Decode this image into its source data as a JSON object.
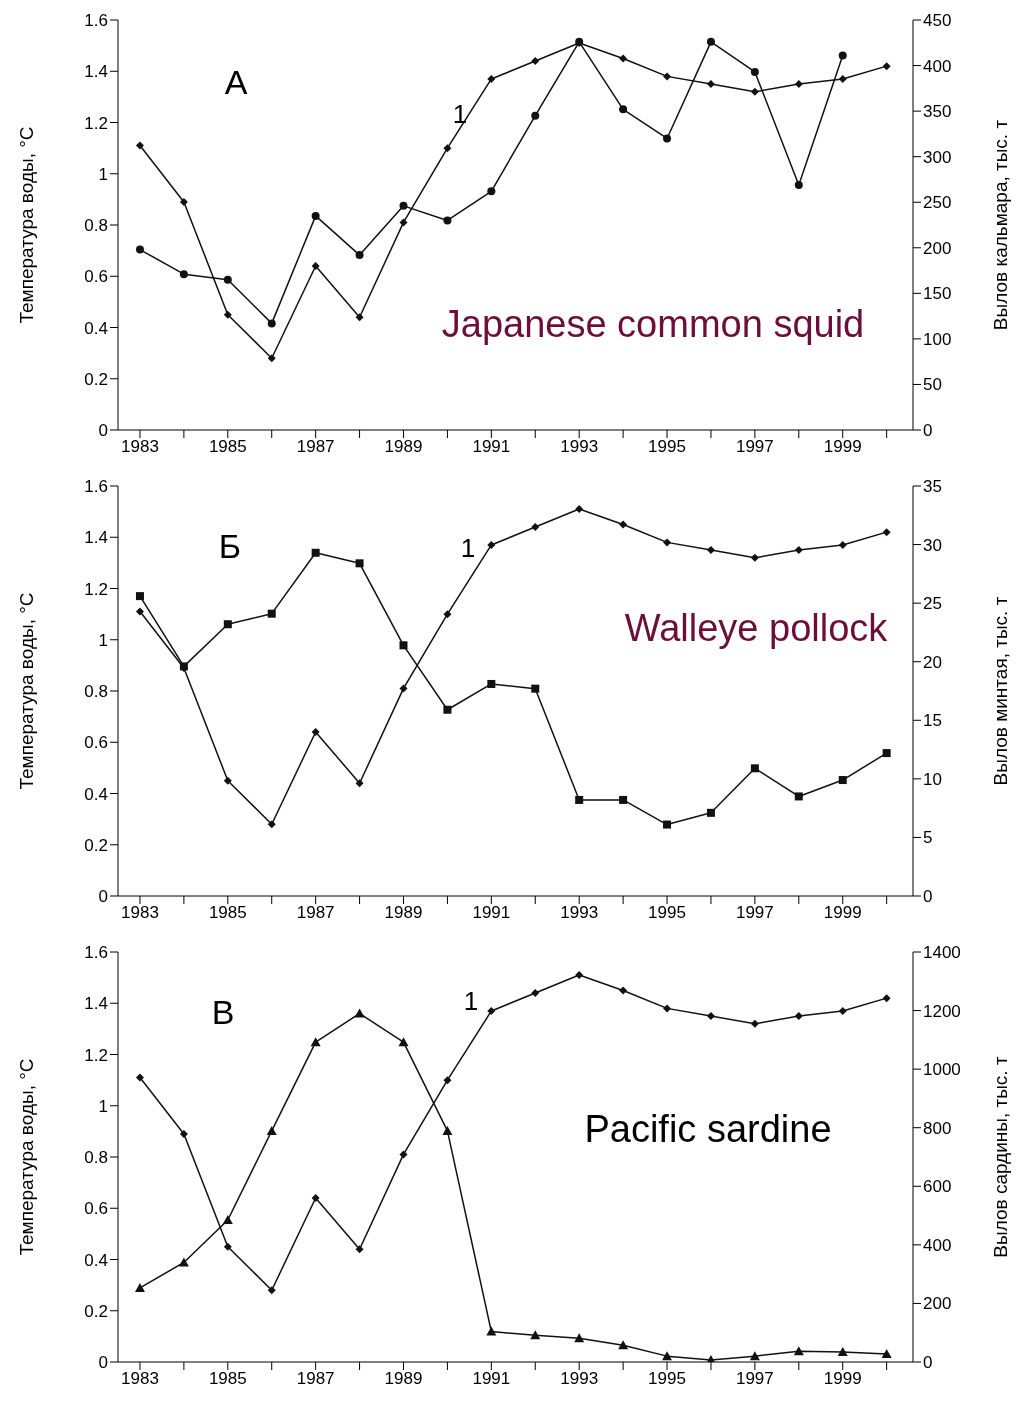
{
  "chart_data": [
    {
      "type": "line",
      "ylabel": "Температура воды, °C",
      "y2label": "Вылов кальмара, тыс. т",
      "x": [
        1983,
        1984,
        1985,
        1986,
        1987,
        1988,
        1989,
        1990,
        1991,
        1992,
        1993,
        1994,
        1995,
        1996,
        1997,
        1998,
        1999,
        2000
      ],
      "xlim": [
        1982.5,
        2000.6
      ],
      "xticks": [
        1983,
        {
          "value": 1984,
          "label": null
        },
        1985,
        {
          "value": 1986,
          "label": null
        },
        1987,
        {
          "value": 1988,
          "label": null
        },
        1989,
        {
          "value": 1990,
          "label": null
        },
        1991,
        {
          "value": 1992,
          "label": null
        },
        1993,
        {
          "value": 1994,
          "label": null
        },
        1995,
        {
          "value": 1996,
          "label": null
        },
        1997,
        {
          "value": 1998,
          "label": null
        },
        1999,
        {
          "value": 2000,
          "label": null
        }
      ],
      "ylim": [
        0,
        1.6
      ],
      "yticks": [
        0,
        0.2,
        0.4,
        0.6,
        0.8,
        1,
        1.2,
        1.4,
        1.6
      ],
      "y2lim": [
        0,
        450
      ],
      "y2ticks": [
        0,
        50,
        100,
        150,
        200,
        250,
        300,
        350,
        400,
        450
      ],
      "series": [
        {
          "color": "#111111",
          "marker": "diamond",
          "values": [
            1.11,
            0.89,
            0.45,
            0.28,
            0.64,
            0.44,
            0.81,
            1.1,
            1.37,
            1.44,
            1.51,
            1.45,
            1.38,
            1.35,
            1.32,
            1.35,
            1.37,
            1.42
          ]
        },
        {
          "color": "#111111",
          "marker": "circle",
          "axis": "y2",
          "values": [
            198,
            171,
            165,
            117,
            235,
            192,
            246,
            230,
            262,
            345,
            426,
            352,
            320,
            426,
            393,
            269,
            411,
            null
          ]
        }
      ],
      "annotations": [
        "А",
        "Japanese common squid",
        "1"
      ],
      "grid": false,
      "legend": false
    },
    {
      "type": "line",
      "ylabel": "Температура воды, °C",
      "y2label": "Вылов минтая, тыс. т",
      "x": [
        1983,
        1984,
        1985,
        1986,
        1987,
        1988,
        1989,
        1990,
        1991,
        1992,
        1993,
        1994,
        1995,
        1996,
        1997,
        1998,
        1999,
        2000
      ],
      "xlim": [
        1982.5,
        2000.6
      ],
      "xticks": [
        1983,
        {
          "value": 1984,
          "label": null
        },
        1985,
        {
          "value": 1986,
          "label": null
        },
        1987,
        {
          "value": 1988,
          "label": null
        },
        1989,
        {
          "value": 1990,
          "label": null
        },
        1991,
        {
          "value": 1992,
          "label": null
        },
        1993,
        {
          "value": 1994,
          "label": null
        },
        1995,
        {
          "value": 1996,
          "label": null
        },
        1997,
        {
          "value": 1998,
          "label": null
        },
        1999,
        {
          "value": 2000,
          "label": null
        }
      ],
      "ylim": [
        0,
        1.6
      ],
      "yticks": [
        0,
        0.2,
        0.4,
        0.6,
        0.8,
        1,
        1.2,
        1.4,
        1.6
      ],
      "y2lim": [
        0,
        35
      ],
      "y2ticks": [
        0,
        5,
        10,
        15,
        20,
        25,
        30,
        35
      ],
      "series": [
        {
          "color": "#111111",
          "marker": "diamond",
          "values": [
            1.11,
            0.89,
            0.45,
            0.28,
            0.64,
            0.44,
            0.81,
            1.1,
            1.37,
            1.44,
            1.51,
            1.45,
            1.38,
            1.35,
            1.32,
            1.35,
            1.37,
            1.42
          ]
        },
        {
          "color": "#111111",
          "marker": "square",
          "axis": "y2",
          "values": [
            25.6,
            19.6,
            23.2,
            24.1,
            29.3,
            28.4,
            21.4,
            15.9,
            18.1,
            17.7,
            8.2,
            8.2,
            6.1,
            7.1,
            10.9,
            8.5,
            9.9,
            12.2
          ]
        }
      ],
      "annotations": [
        "Б",
        "Walleye pollock",
        "1"
      ],
      "grid": false,
      "legend": false
    },
    {
      "type": "line",
      "ylabel": "Температура воды, °C",
      "y2label": "Вылов сардины, тыс. т",
      "x": [
        1983,
        1984,
        1985,
        1986,
        1987,
        1988,
        1989,
        1990,
        1991,
        1992,
        1993,
        1994,
        1995,
        1996,
        1997,
        1998,
        1999,
        2000
      ],
      "xlim": [
        1982.5,
        2000.6
      ],
      "xticks": [
        1983,
        {
          "value": 1984,
          "label": null
        },
        1985,
        {
          "value": 1986,
          "label": null
        },
        1987,
        {
          "value": 1988,
          "label": null
        },
        1989,
        {
          "value": 1990,
          "label": null
        },
        1991,
        {
          "value": 1992,
          "label": null
        },
        1993,
        {
          "value": 1994,
          "label": null
        },
        1995,
        {
          "value": 1996,
          "label": null
        },
        1997,
        {
          "value": 1998,
          "label": null
        },
        1999,
        {
          "value": 2000,
          "label": null
        }
      ],
      "ylim": [
        0,
        1.6
      ],
      "yticks": [
        0,
        0.2,
        0.4,
        0.6,
        0.8,
        1,
        1.2,
        1.4,
        1.6
      ],
      "y2lim": [
        0,
        1400
      ],
      "y2ticks": [
        0,
        200,
        400,
        600,
        800,
        1000,
        1200,
        1400
      ],
      "series": [
        {
          "color": "#111111",
          "marker": "diamond",
          "values": [
            1.11,
            0.89,
            0.45,
            0.28,
            0.64,
            0.44,
            0.81,
            1.1,
            1.37,
            1.44,
            1.51,
            1.45,
            1.38,
            1.35,
            1.32,
            1.35,
            1.37,
            1.42
          ]
        },
        {
          "color": "#111111",
          "marker": "triangle",
          "axis": "y2",
          "values": [
            253,
            340,
            485,
            789,
            1092,
            1190,
            1092,
            789,
            104,
            91,
            81,
            57,
            20,
            7,
            20,
            37,
            34,
            27
          ]
        }
      ],
      "annotations": [
        "В",
        "Pacific sardine",
        "1"
      ],
      "grid": false,
      "legend": false
    }
  ]
}
